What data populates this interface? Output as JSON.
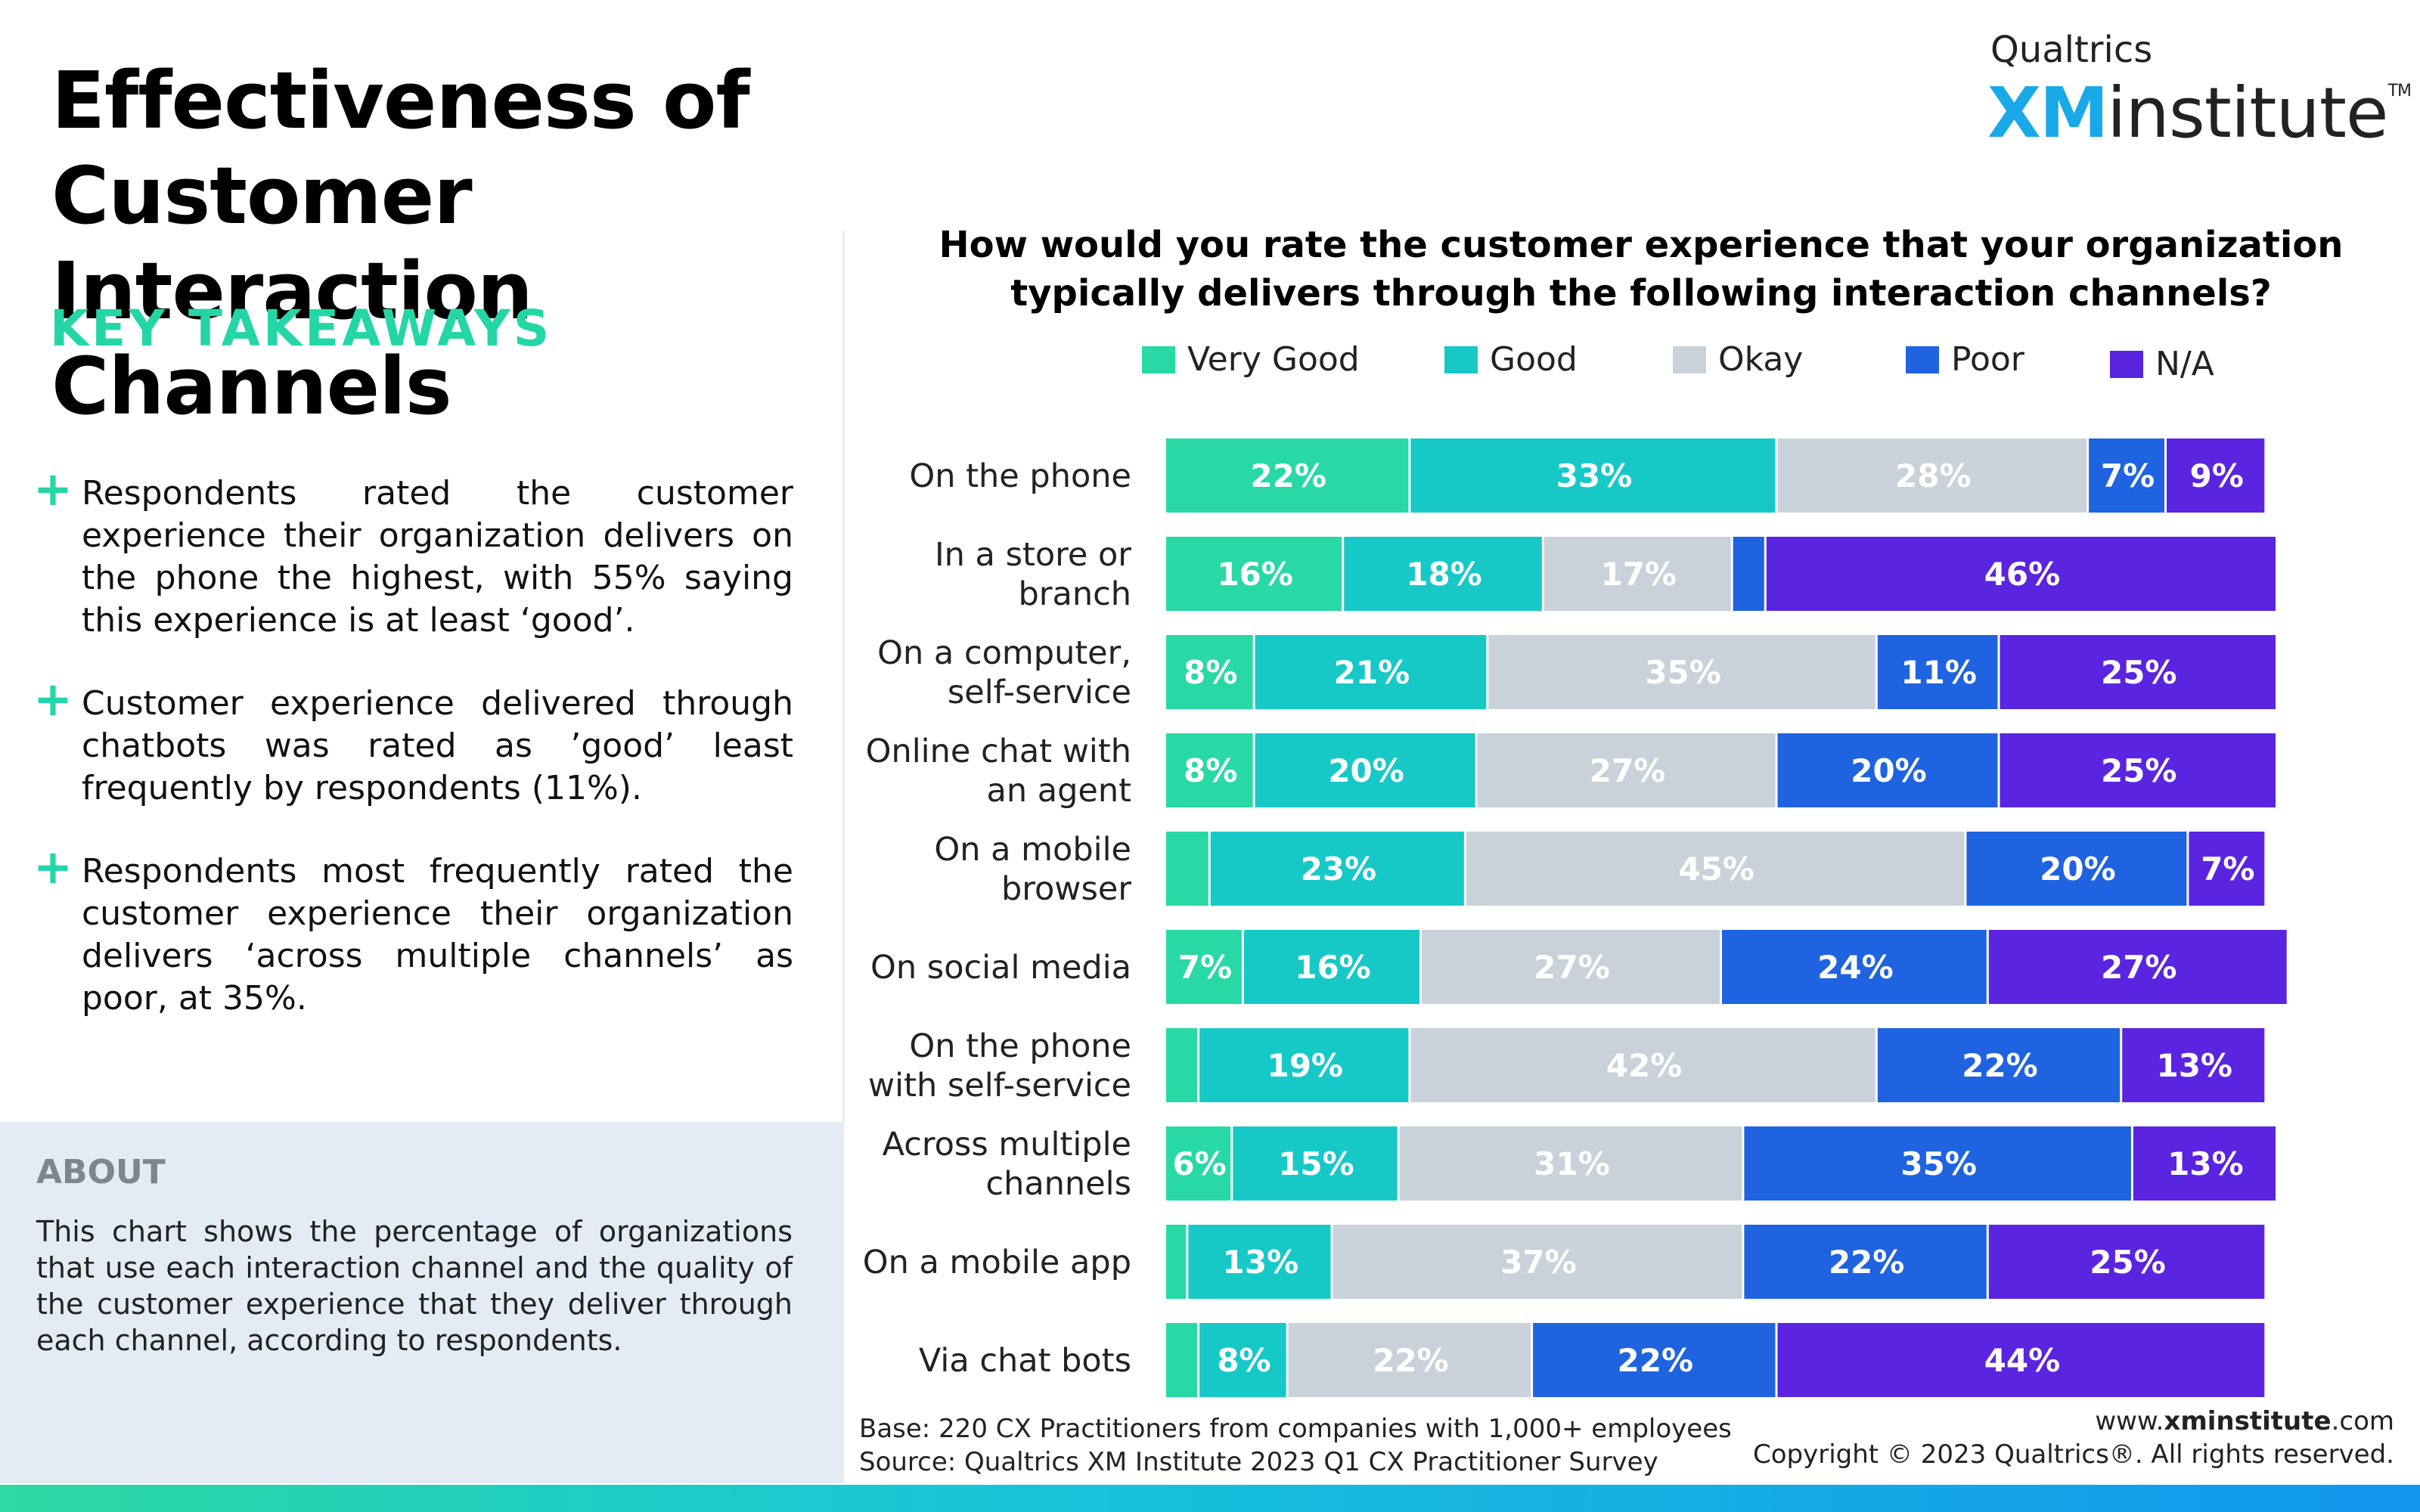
{
  "title": "Effectiveness of Customer Interaction Channels",
  "key_takeaways": {
    "heading": "KEY TAKEAWAYS",
    "items": [
      "Respondents rated the customer experience their organization delivers on the phone the highest, with 55% saying this experience is at least ‘good’.",
      "Customer experience delivered through chatbots was rated as ’good’ least frequently by respondents (11%).",
      "Respondents most frequently rated the customer experience their organization delivers ‘across multiple channels’ as poor, at 35%."
    ]
  },
  "about": {
    "heading": "ABOUT",
    "text": "This chart shows the percentage of organizations that use each interaction channel and the quality of the customer experience that they deliver through each channel, according to respondents."
  },
  "logo": {
    "brand": "Qualtrics",
    "xm": "XM",
    "institute": "institute",
    "tm": "TM"
  },
  "footer": {
    "base": "Base: 220 CX Practitioners from companies with 1,000+ employees",
    "source": "Source: Qualtrics XM Institute 2023 Q1 CX Practitioner Survey",
    "website_prefix": "www.",
    "website_bold": "xminstitute",
    "website_suffix": ".com",
    "copyright": "Copyright © 2023 Qualtrics®. All rights reserved."
  },
  "colors": {
    "very_good": "#28d9a6",
    "good": "#16c9c7",
    "okay": "#c9d2da",
    "poor": "#1f63e0",
    "na": "#5a24e0",
    "accent": "#24d6a6"
  },
  "chart_data": {
    "type": "bar",
    "orientation": "horizontal-stacked",
    "title": "How would you rate the customer experience that your organization typically delivers through the following interaction channels?",
    "legend_position": "top",
    "categories": [
      "On the phone",
      "In a store or branch",
      "On a computer, self-service",
      "Online chat with an agent",
      "On a mobile browser",
      "On social media",
      "On the phone with self-service",
      "Across multiple channels",
      "On a mobile app",
      "Via chat bots"
    ],
    "category_lines": [
      [
        "On the phone"
      ],
      [
        "In a store or",
        "branch"
      ],
      [
        "On a computer,",
        "self-service"
      ],
      [
        "Online chat with",
        "an agent"
      ],
      [
        "On a mobile",
        "browser"
      ],
      [
        "On social media"
      ],
      [
        "On the phone",
        "with self-service"
      ],
      [
        "Across multiple",
        "channels"
      ],
      [
        "On a mobile app"
      ],
      [
        "Via chat bots"
      ]
    ],
    "series": [
      {
        "name": "Very Good",
        "color": "#28d9a6",
        "values": [
          22,
          16,
          8,
          8,
          4,
          7,
          3,
          6,
          2,
          3
        ]
      },
      {
        "name": "Good",
        "color": "#16c9c7",
        "values": [
          33,
          18,
          21,
          20,
          23,
          16,
          19,
          15,
          13,
          8
        ]
      },
      {
        "name": "Okay",
        "color": "#c9d2da",
        "values": [
          28,
          17,
          35,
          27,
          45,
          27,
          42,
          31,
          37,
          22
        ]
      },
      {
        "name": "Poor",
        "color": "#1f63e0",
        "values": [
          7,
          3,
          11,
          20,
          20,
          24,
          22,
          35,
          22,
          22
        ]
      },
      {
        "name": "N/A",
        "color": "#5a24e0",
        "values": [
          9,
          46,
          25,
          25,
          7,
          27,
          13,
          13,
          25,
          44
        ]
      }
    ],
    "labels": [
      [
        "22%",
        "33%",
        "28%",
        "7%",
        "9%"
      ],
      [
        "16%",
        "18%",
        "17%",
        "",
        "46%"
      ],
      [
        "8%",
        "21%",
        "35%",
        "11%",
        "25%"
      ],
      [
        "8%",
        "20%",
        "27%",
        "20%",
        "25%"
      ],
      [
        "",
        "23%",
        "45%",
        "20%",
        "7%"
      ],
      [
        "7%",
        "16%",
        "27%",
        "24%",
        "27%"
      ],
      [
        "",
        "19%",
        "42%",
        "22%",
        "13%"
      ],
      [
        "6%",
        "15%",
        "31%",
        "35%",
        "13%"
      ],
      [
        "",
        "13%",
        "37%",
        "22%",
        "25%"
      ],
      [
        "",
        "8%",
        "22%",
        "22%",
        "44%"
      ]
    ],
    "xlim": [
      0,
      100
    ],
    "grid": false
  }
}
